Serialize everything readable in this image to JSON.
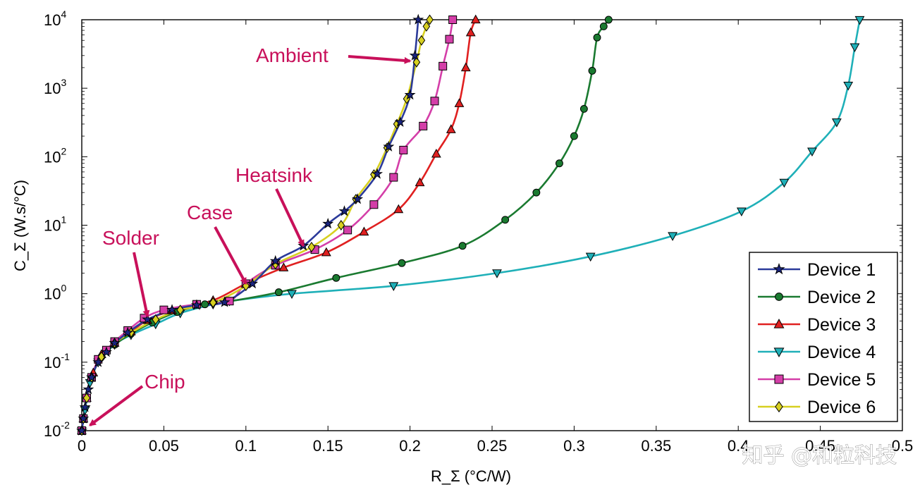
{
  "chart_data": {
    "type": "line",
    "title": "",
    "xlabel": "R_Σ (°C/W)",
    "ylabel": "C_Σ (W.s/°C)",
    "x_scale": "linear",
    "y_scale": "log",
    "xlim": [
      0,
      0.5
    ],
    "ylim": [
      0.01,
      10000
    ],
    "grid": false,
    "legend_position": "bottom-right",
    "x_ticks": [
      "0",
      "0.05",
      "0.1",
      "0.15",
      "0.2",
      "0.25",
      "0.3",
      "0.35",
      "0.4",
      "0.45",
      "0.5"
    ],
    "y_ticks": [
      {
        "base": "10",
        "exp": "-2"
      },
      {
        "base": "10",
        "exp": "-1"
      },
      {
        "base": "10",
        "exp": "0"
      },
      {
        "base": "10",
        "exp": "1"
      },
      {
        "base": "10",
        "exp": "2"
      },
      {
        "base": "10",
        "exp": "3"
      },
      {
        "base": "10",
        "exp": "4"
      }
    ],
    "annotations": [
      {
        "label": "Ambient",
        "x": 0.2,
        "y": 2500
      },
      {
        "label": "Heatsink",
        "x": 0.135,
        "y": 5
      },
      {
        "label": "Case",
        "x": 0.1,
        "y": 1.4
      },
      {
        "label": "Solder",
        "x": 0.04,
        "y": 0.47
      },
      {
        "label": "Chip",
        "x": 0.005,
        "y": 0.012
      }
    ],
    "series": [
      {
        "name": "Device 1",
        "color": "#2b3a9a",
        "marker": "star",
        "x": [
          0,
          0.001,
          0.002,
          0.004,
          0.006,
          0.01,
          0.015,
          0.02,
          0.028,
          0.04,
          0.055,
          0.07,
          0.087,
          0.104,
          0.118,
          0.135,
          0.15,
          0.16,
          0.168,
          0.18,
          0.187,
          0.194,
          0.2,
          0.203,
          0.205
        ],
        "y": [
          0.01,
          0.015,
          0.022,
          0.04,
          0.06,
          0.1,
          0.14,
          0.19,
          0.27,
          0.42,
          0.58,
          0.68,
          0.75,
          1.4,
          3.0,
          5.0,
          10.5,
          16,
          24,
          56,
          140,
          320,
          800,
          3000,
          10000
        ]
      },
      {
        "name": "Device 2",
        "color": "#1a7a30",
        "marker": "circle",
        "x": [
          0,
          0.001,
          0.003,
          0.006,
          0.012,
          0.02,
          0.03,
          0.043,
          0.058,
          0.075,
          0.088,
          0.12,
          0.155,
          0.195,
          0.232,
          0.258,
          0.277,
          0.291,
          0.3,
          0.306,
          0.311,
          0.314,
          0.318,
          0.321
        ],
        "y": [
          0.01,
          0.015,
          0.03,
          0.06,
          0.12,
          0.18,
          0.26,
          0.38,
          0.54,
          0.7,
          0.76,
          1.05,
          1.7,
          2.8,
          5.0,
          12,
          30,
          80,
          200,
          500,
          1800,
          5500,
          8000,
          10000
        ]
      },
      {
        "name": "Device 3",
        "color": "#e02020",
        "marker": "triangle-up",
        "x": [
          0,
          0.001,
          0.003,
          0.007,
          0.012,
          0.02,
          0.03,
          0.04,
          0.055,
          0.08,
          0.1,
          0.123,
          0.149,
          0.172,
          0.193,
          0.206,
          0.216,
          0.225,
          0.23,
          0.234,
          0.237,
          0.24
        ],
        "y": [
          0.01,
          0.015,
          0.03,
          0.07,
          0.13,
          0.19,
          0.28,
          0.41,
          0.57,
          0.8,
          1.4,
          2.4,
          4.0,
          8.0,
          17,
          42,
          110,
          250,
          600,
          2000,
          6500,
          10000
        ]
      },
      {
        "name": "Device 4",
        "color": "#1fb0b8",
        "marker": "triangle-down",
        "x": [
          0,
          0.002,
          0.005,
          0.01,
          0.02,
          0.03,
          0.045,
          0.06,
          0.08,
          0.09,
          0.128,
          0.19,
          0.253,
          0.31,
          0.36,
          0.402,
          0.428,
          0.445,
          0.46,
          0.467,
          0.471,
          0.474
        ],
        "y": [
          0.01,
          0.02,
          0.05,
          0.1,
          0.18,
          0.25,
          0.36,
          0.52,
          0.7,
          0.78,
          1.0,
          1.3,
          2.0,
          3.5,
          7.0,
          16,
          42,
          120,
          320,
          1100,
          4000,
          10000
        ]
      },
      {
        "name": "Device 5",
        "color": "#d43ea8",
        "marker": "square",
        "x": [
          0,
          0.001,
          0.003,
          0.006,
          0.01,
          0.015,
          0.02,
          0.028,
          0.038,
          0.05,
          0.07,
          0.09,
          0.1,
          0.118,
          0.142,
          0.162,
          0.178,
          0.19,
          0.196,
          0.208,
          0.215,
          0.22,
          0.224,
          0.226
        ],
        "y": [
          0.01,
          0.015,
          0.03,
          0.06,
          0.11,
          0.15,
          0.2,
          0.29,
          0.44,
          0.58,
          0.7,
          0.78,
          1.4,
          2.6,
          4.4,
          8.5,
          20,
          50,
          125,
          280,
          650,
          2100,
          5200,
          10000
        ]
      },
      {
        "name": "Device 6",
        "color": "#d7d020",
        "marker": "diamond",
        "x": [
          0,
          0.001,
          0.003,
          0.006,
          0.012,
          0.02,
          0.03,
          0.045,
          0.06,
          0.08,
          0.1,
          0.118,
          0.14,
          0.158,
          0.167,
          0.178,
          0.186,
          0.192,
          0.198,
          0.204,
          0.207,
          0.21,
          0.212
        ],
        "y": [
          0.01,
          0.015,
          0.03,
          0.06,
          0.12,
          0.19,
          0.27,
          0.42,
          0.58,
          0.74,
          1.3,
          2.7,
          4.8,
          10,
          24,
          55,
          135,
          300,
          700,
          2400,
          5000,
          8000,
          10000
        ]
      }
    ]
  },
  "watermark": "知乎 @和粒科技"
}
